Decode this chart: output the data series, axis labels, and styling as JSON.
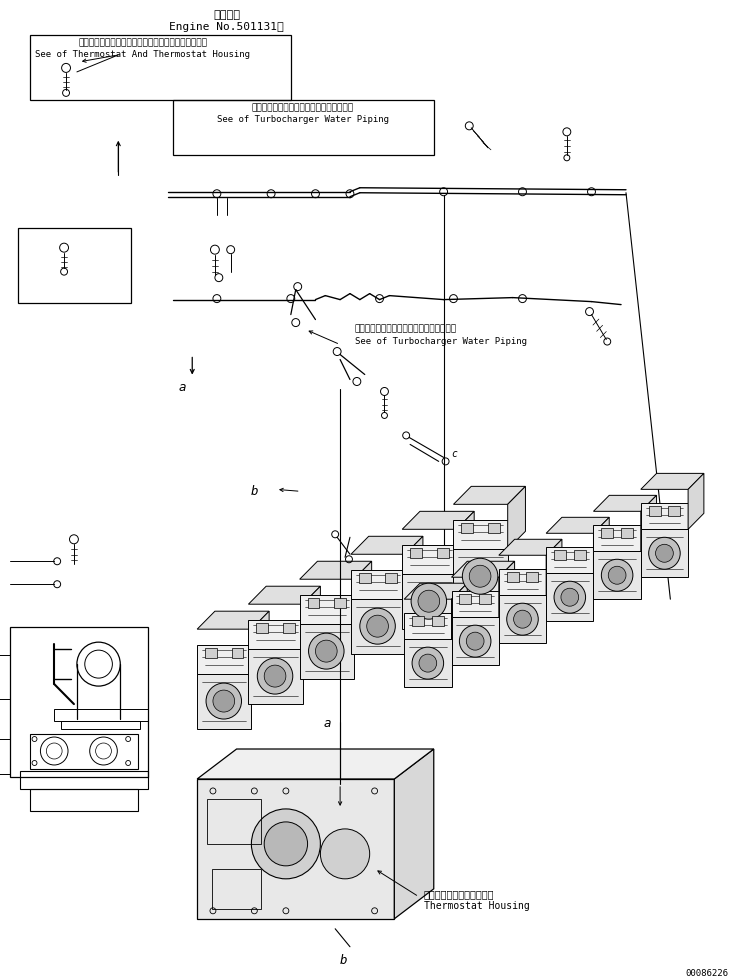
{
  "title_jp": "適用号機",
  "title_en": "Engine No.501131～",
  "label1_jp": "サーモスタットおよびサーモスタットハウジング参照",
  "label1_en": "See of Thermostat And Thermostat Housing",
  "label2_jp": "ターボチャージャウォータパイピング参照",
  "label2_en": "See of Turbocharger Water Piping",
  "label3_jp": "ターボチャージャウォータパイピング参照",
  "label3_en": "See of Turbocharger Water Piping",
  "label4_jp": "サーモスタットハウジング",
  "label4_en": "Thermostat Housing",
  "watermark": "00086226",
  "point_a": "a",
  "point_b": "b",
  "point_c": "c",
  "bg_color": "#ffffff",
  "line_color": "#000000"
}
